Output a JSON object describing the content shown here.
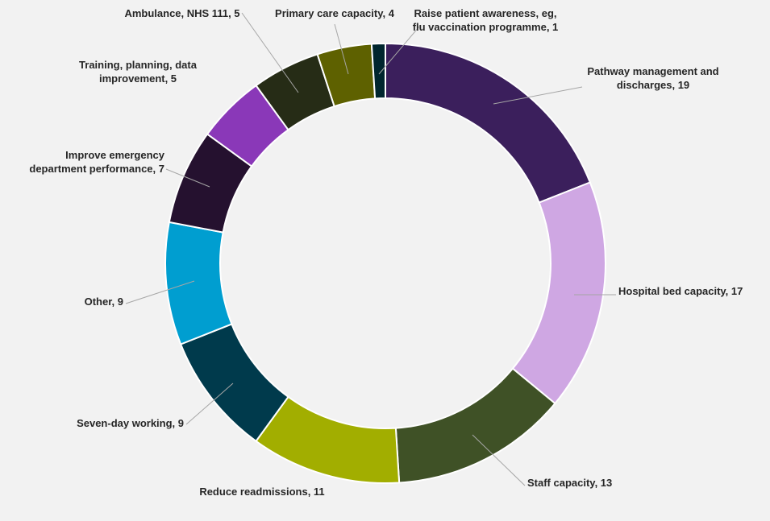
{
  "chart_data": {
    "type": "pie",
    "donut": true,
    "title": "",
    "legend": "none",
    "start_angle_deg": 0,
    "direction": "clockwise",
    "slices": [
      {
        "label": "Pathway management and discharges",
        "label_lines": [
          "Pathway management and",
          "discharges, 19"
        ],
        "value": 19,
        "color": "#3b1f5c"
      },
      {
        "label": "Hospital bed capacity",
        "label_lines": [
          "Hospital bed capacity, 17"
        ],
        "value": 17,
        "color": "#cfa7e3"
      },
      {
        "label": "Staff capacity",
        "label_lines": [
          "Staff capacity, 13"
        ],
        "value": 13,
        "color": "#3f5126"
      },
      {
        "label": "Reduce readmissions",
        "label_lines": [
          "Reduce readmissions, 11"
        ],
        "value": 11,
        "color": "#a2ae00"
      },
      {
        "label": "Seven-day working",
        "label_lines": [
          "Seven-day working, 9"
        ],
        "value": 9,
        "color": "#003a4c"
      },
      {
        "label": "Other",
        "label_lines": [
          "Other, 9"
        ],
        "value": 9,
        "color": "#009ed0"
      },
      {
        "label": "Improve emergency department performance",
        "label_lines": [
          "Improve emergency",
          "department performance, 7"
        ],
        "value": 7,
        "color": "#25112f"
      },
      {
        "label": "Training, planning, data improvement",
        "label_lines": [
          "Training, planning, data",
          "improvement, 5"
        ],
        "value": 5,
        "color": "#8a38b8"
      },
      {
        "label": "Ambulance, NHS 111",
        "label_lines": [
          "Ambulance, NHS 111, 5"
        ],
        "value": 5,
        "color": "#262c16"
      },
      {
        "label": "Primary care capacity",
        "label_lines": [
          "Primary care capacity, 4"
        ],
        "value": 4,
        "color": "#5e6100"
      },
      {
        "label": "Raise patient awareness, eg, flu vaccination programme",
        "label_lines": [
          "Raise patient awareness, eg,",
          "flu vaccination programme, 1"
        ],
        "value": 1,
        "color": "#00262e"
      }
    ]
  }
}
